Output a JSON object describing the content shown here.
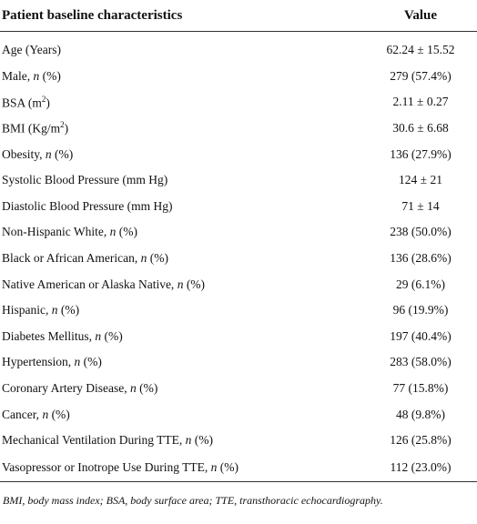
{
  "table": {
    "header": [
      "Patient baseline characteristics",
      "Value"
    ],
    "rows": [
      {
        "label": [
          "Age (Years)"
        ],
        "value": "62.24 ± 15.52"
      },
      {
        "label": [
          "Male, ",
          "n",
          " (%)"
        ],
        "value": "279 (57.4%)"
      },
      {
        "label": [
          "BSA (m",
          "2",
          ")"
        ],
        "value": "2.11 ± 0.27"
      },
      {
        "label": [
          "BMI (Kg/m",
          "2",
          ")"
        ],
        "value": "30.6 ± 6.68"
      },
      {
        "label": [
          "Obesity, ",
          "n",
          " (%)"
        ],
        "value": "136 (27.9%)"
      },
      {
        "label": [
          "Systolic Blood Pressure (mm Hg)"
        ],
        "value": "124 ± 21"
      },
      {
        "label": [
          "Diastolic Blood Pressure (mm Hg)"
        ],
        "value": "71 ± 14"
      },
      {
        "label": [
          "Non-Hispanic White, ",
          "n",
          " (%)"
        ],
        "value": "238 (50.0%)"
      },
      {
        "label": [
          "Black or African American, ",
          "n",
          " (%)"
        ],
        "value": "136 (28.6%)"
      },
      {
        "label": [
          "Native American or Alaska Native, ",
          "n",
          " (%)"
        ],
        "value": "29 (6.1%)"
      },
      {
        "label": [
          "Hispanic, ",
          "n",
          " (%)"
        ],
        "value": "96 (19.9%)"
      },
      {
        "label": [
          "Diabetes Mellitus, ",
          "n",
          " (%)"
        ],
        "value": "197 (40.4%)"
      },
      {
        "label": [
          "Hypertension, ",
          "n",
          " (%)"
        ],
        "value": "283 (58.0%)"
      },
      {
        "label": [
          "Coronary Artery Disease, ",
          "n",
          " (%)"
        ],
        "value": "77 (15.8%)"
      },
      {
        "label": [
          "Cancer, ",
          "n",
          " (%)"
        ],
        "value": "48 (9.8%)"
      },
      {
        "label": [
          "Mechanical Ventilation During TTE, ",
          "n",
          " (%)"
        ],
        "value": "126 (25.8%)"
      },
      {
        "label": [
          "Vasopressor or Inotrope Use During TTE, ",
          "n",
          " (%)"
        ],
        "value": "112 (23.0%)"
      }
    ],
    "footnote": "BMI, body mass index; BSA, body surface area; TTE, transthoracic echocardiography."
  }
}
